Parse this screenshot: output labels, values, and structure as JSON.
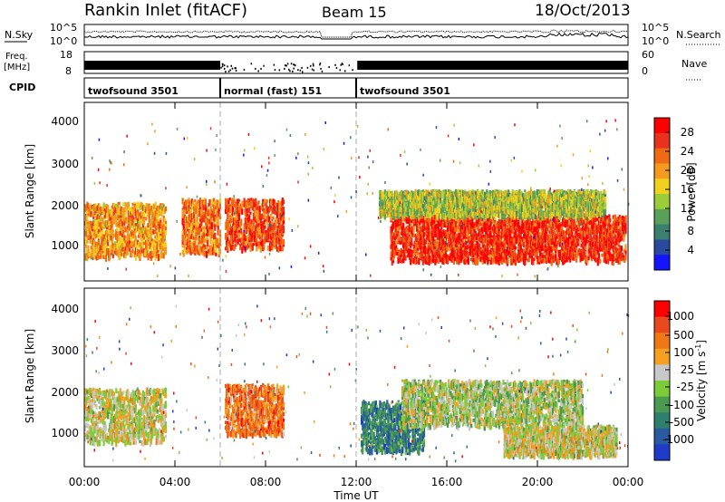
{
  "header": {
    "station": "Rankin Inlet (fitACF)",
    "beam": "Beam 15",
    "date": "18/Oct/2013"
  },
  "noise_panel": {
    "left_label": "N.Sky",
    "right_label": "N.Search",
    "left_ticks": [
      "10^5",
      "10^0"
    ],
    "right_ticks": [
      "10^5",
      "10^0"
    ]
  },
  "freq_panel": {
    "left_label_1": "Freq.",
    "left_label_2": "[MHz]",
    "right_label": "Nave",
    "left_ticks": [
      "18",
      "8"
    ],
    "right_ticks": [
      "60",
      "0"
    ]
  },
  "cpid_panel": {
    "label": "CPID",
    "segments": [
      {
        "name": "twofsound 3501",
        "start_hour": 0,
        "end_hour": 6
      },
      {
        "name": "normal (fast) 151",
        "start_hour": 6,
        "end_hour": 12
      },
      {
        "name": "twofsound 3501",
        "start_hour": 12,
        "end_hour": 24
      }
    ]
  },
  "x_axis": {
    "label": "Time UT",
    "ticks": [
      "00:00",
      "04:00",
      "08:00",
      "12:00",
      "16:00",
      "20:00",
      "00:00"
    ],
    "range_hours": [
      0,
      24
    ]
  },
  "power_panel": {
    "ylabel": "Slant Range [km]",
    "yticks": [
      "4000",
      "3000",
      "2000",
      "1000"
    ],
    "colorbar_label": "Power [dB]",
    "colorbar_ticks": [
      "28",
      "24",
      "20",
      "16",
      "12",
      "8",
      "4"
    ],
    "colors": [
      "#1414ff",
      "#2a4aa0",
      "#3b7f6e",
      "#5aa05a",
      "#9ccc3a",
      "#f0d21e",
      "#f59a1e",
      "#f06a14",
      "#e8321e",
      "#ff0000"
    ]
  },
  "velocity_panel": {
    "ylabel": "Slant Range [km]",
    "yticks": [
      "4000",
      "3000",
      "2000",
      "1000"
    ],
    "colorbar_label": "Velocity [m s^-1]",
    "colorbar_ticks": [
      "1000",
      "500",
      "100",
      "25",
      "-25",
      "-100",
      "-500",
      "-1000"
    ],
    "colors": [
      "#1e3cc8",
      "#2a5aa0",
      "#2e7f6e",
      "#4a9a50",
      "#7ccc3a",
      "#c8c8c8",
      "#f5a01e",
      "#f07814",
      "#e84a1e",
      "#ff0000"
    ]
  },
  "chart_data": {
    "type": "heatmap",
    "title": "Rankin Inlet (fitACF)",
    "xlabel": "Time UT",
    "ylabel": "Slant Range [km]",
    "xlim_hours": [
      0,
      24
    ],
    "ylim_km": [
      180,
      4500
    ],
    "panels": [
      {
        "name": "Power [dB]",
        "clim": [
          0,
          30
        ],
        "regions": [
          {
            "t0": 0.0,
            "t1": 3.6,
            "r0": 800,
            "r1": 2100,
            "v": 20
          },
          {
            "t0": 4.3,
            "t1": 6.0,
            "r0": 900,
            "r1": 2200,
            "v": 22
          },
          {
            "t0": 6.2,
            "t1": 8.8,
            "r0": 1000,
            "r1": 2200,
            "v": 24
          },
          {
            "t0": 13.5,
            "t1": 23.9,
            "r0": 700,
            "r1": 1800,
            "v": 26
          },
          {
            "t0": 13.0,
            "t1": 23.0,
            "r0": 1800,
            "r1": 2400,
            "v": 14
          }
        ]
      },
      {
        "name": "Velocity [m s^-1]",
        "clim": [
          -1000,
          1000
        ],
        "regions": [
          {
            "t0": 0.0,
            "t1": 3.6,
            "r0": 800,
            "r1": 2100,
            "v": 100
          },
          {
            "t0": 6.2,
            "t1": 8.8,
            "r0": 1000,
            "r1": 2200,
            "v": 500
          },
          {
            "t0": 12.2,
            "t1": 15.0,
            "r0": 600,
            "r1": 1800,
            "v": -500
          },
          {
            "t0": 14.0,
            "t1": 22.0,
            "r0": 1200,
            "r1": 2300,
            "v": 0
          },
          {
            "t0": 18.5,
            "t1": 23.5,
            "r0": 500,
            "r1": 1200,
            "v": 100
          }
        ]
      }
    ]
  }
}
